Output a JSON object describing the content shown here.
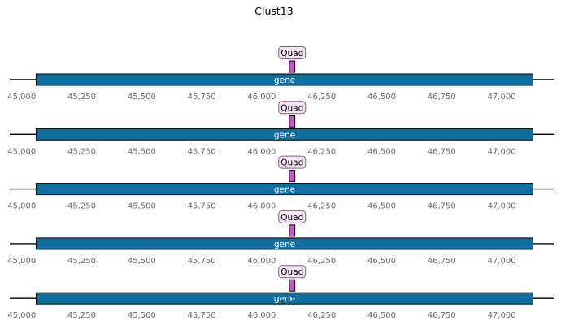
{
  "figure": {
    "title": "Clust13"
  },
  "chart_data": {
    "type": "genome-track",
    "title": "Clust13",
    "x_range": [
      44950,
      47220
    ],
    "ticks": [
      45000,
      45250,
      45500,
      45750,
      46000,
      46250,
      46500,
      46750,
      47000
    ],
    "tick_labels": [
      "45,000",
      "45,250",
      "45,500",
      "45,750",
      "46,000",
      "46,250",
      "46,500",
      "46,750",
      "47,000"
    ],
    "colors": {
      "gene": "#0e6ea0",
      "feature": "#cc55cc",
      "feature_label_bg": "#f6e6f6",
      "feature_label_border": "#8a5a8a",
      "axis": "#000000"
    },
    "tracks": [
      {
        "gene": {
          "label": "gene",
          "start": 45060,
          "end": 47130
        },
        "feature": {
          "label": "Quad",
          "start": 46115,
          "end": 46138
        }
      },
      {
        "gene": {
          "label": "gene",
          "start": 45060,
          "end": 47130
        },
        "feature": {
          "label": "Quad",
          "start": 46115,
          "end": 46138
        }
      },
      {
        "gene": {
          "label": "gene",
          "start": 45060,
          "end": 47130
        },
        "feature": {
          "label": "Quad",
          "start": 46115,
          "end": 46138
        }
      },
      {
        "gene": {
          "label": "gene",
          "start": 45060,
          "end": 47130
        },
        "feature": {
          "label": "Quad",
          "start": 46115,
          "end": 46138
        }
      },
      {
        "gene": {
          "label": "gene",
          "start": 45060,
          "end": 47130
        },
        "feature": {
          "label": "Quad",
          "start": 46115,
          "end": 46138
        }
      }
    ]
  }
}
